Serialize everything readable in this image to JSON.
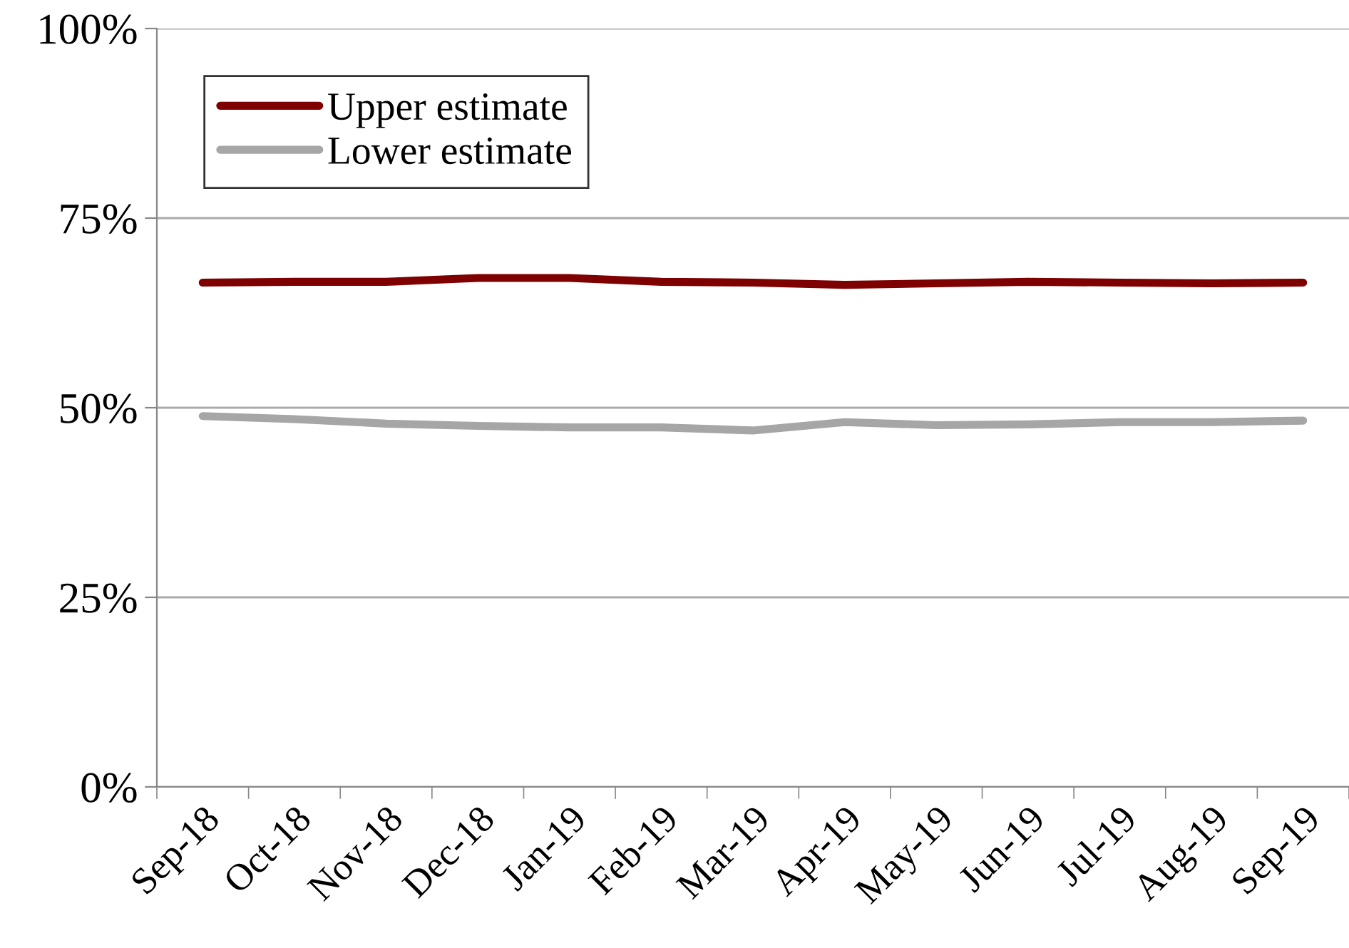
{
  "chart_data": {
    "type": "line",
    "categories": [
      "Sep-18",
      "Oct-18",
      "Nov-18",
      "Dec-18",
      "Jan-19",
      "Feb-19",
      "Mar-19",
      "Apr-19",
      "May-19",
      "Jun-19",
      "Jul-19",
      "Aug-19",
      "Sep-19"
    ],
    "series": [
      {
        "name": "Upper estimate",
        "color": "#7f0000",
        "values": [
          66.5,
          66.6,
          66.6,
          67.1,
          67.1,
          66.6,
          66.5,
          66.2,
          66.4,
          66.6,
          66.5,
          66.4,
          66.5
        ]
      },
      {
        "name": "Lower estimate",
        "color": "#a6a6a6",
        "values": [
          48.9,
          48.5,
          47.9,
          47.6,
          47.4,
          47.4,
          47.0,
          48.1,
          47.7,
          47.8,
          48.1,
          48.1,
          48.3
        ]
      }
    ],
    "ylim": [
      0,
      100
    ],
    "yticks": [
      {
        "value": 0,
        "label": "0%"
      },
      {
        "value": 25,
        "label": "25%"
      },
      {
        "value": 50,
        "label": "50%"
      },
      {
        "value": 75,
        "label": "75%"
      },
      {
        "value": 100,
        "label": "100%"
      }
    ],
    "grid": "y",
    "legend": "top left",
    "marker": "none",
    "line_style": "solid"
  }
}
